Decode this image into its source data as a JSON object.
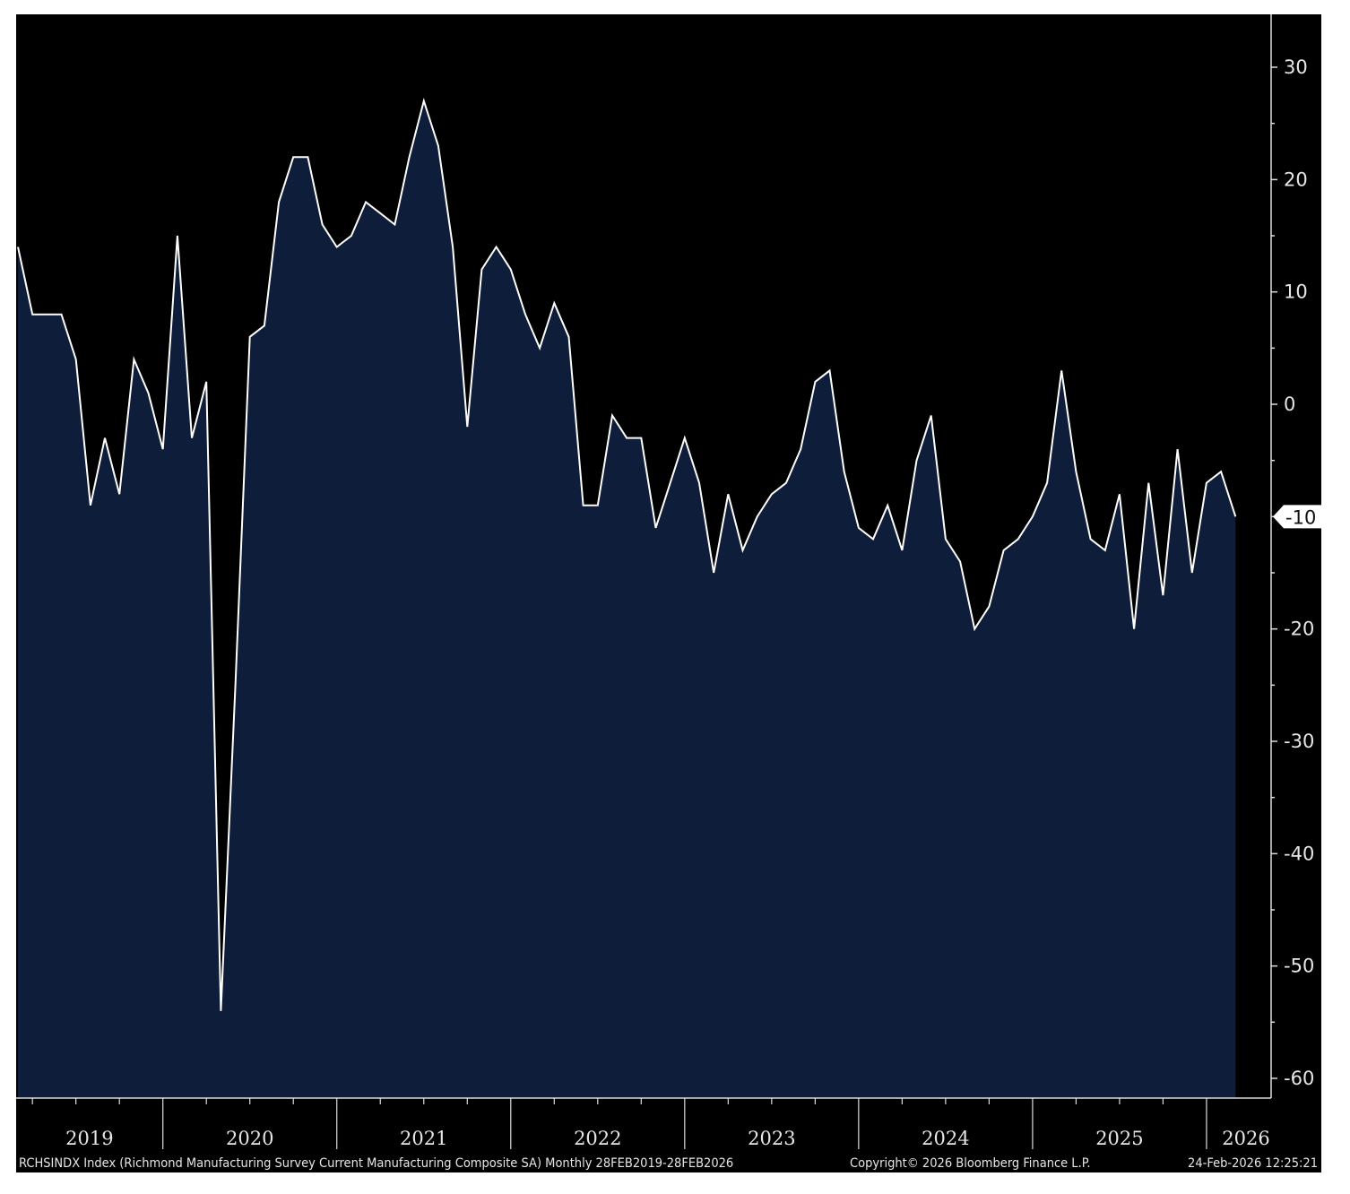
{
  "chart_data": {
    "type": "area",
    "title": "RCHSINDX Index (Richmond Manufacturing Survey Current Manufacturing Composite SA) Monthly 28FEB2019-28FEB2026",
    "series": [
      {
        "name": "RCHSINDX Index",
        "start": "2019-02",
        "frequency": "monthly",
        "values": [
          14,
          8,
          8,
          8,
          4,
          -9,
          -3,
          -8,
          4,
          1,
          -4,
          15,
          -3,
          2,
          -54,
          -25,
          6,
          7,
          18,
          22,
          22,
          16,
          14,
          15,
          18,
          17,
          16,
          22,
          27,
          23,
          14,
          -2,
          12,
          14,
          12,
          8,
          5,
          9,
          6,
          -9,
          -9,
          -1,
          -3,
          -3,
          -11,
          -7,
          -3,
          -7,
          -15,
          -8,
          -13,
          -10,
          -8,
          -7,
          -4,
          2,
          3,
          -6,
          -11,
          -12,
          -9,
          -13,
          -5,
          -1,
          -12,
          -14,
          -20,
          -18,
          -13,
          -12,
          -10,
          -7,
          3,
          -6,
          -12,
          -13,
          -8,
          -20,
          -7,
          -17,
          -4,
          -15,
          -7,
          -6,
          -10
        ]
      }
    ],
    "ylim": [
      -68,
      35
    ],
    "yticks": [
      "30",
      "20",
      "10",
      "0",
      "-10",
      "-20",
      "-30",
      "-40",
      "-50",
      "-60"
    ],
    "ytick_values": [
      30,
      20,
      10,
      0,
      -10,
      -20,
      -30,
      -40,
      -50,
      -60
    ],
    "xticks": [
      "2019",
      "2020",
      "2021",
      "2022",
      "2023",
      "2024",
      "2025",
      "2026"
    ],
    "last_value_label": "-10",
    "line_color": "#ffffff",
    "fill_color": "#0d1d3a",
    "background": "#000000",
    "grid": false,
    "legend": "none"
  },
  "footer": {
    "source": "RCHSINDX Index (Richmond Manufacturing Survey Current Manufacturing Composite SA) Monthly 28FEB2019-28FEB2026",
    "copyright": "Copyright© 2026 Bloomberg Finance L.P.",
    "timestamp": "24-Feb-2026 12:25:21"
  }
}
